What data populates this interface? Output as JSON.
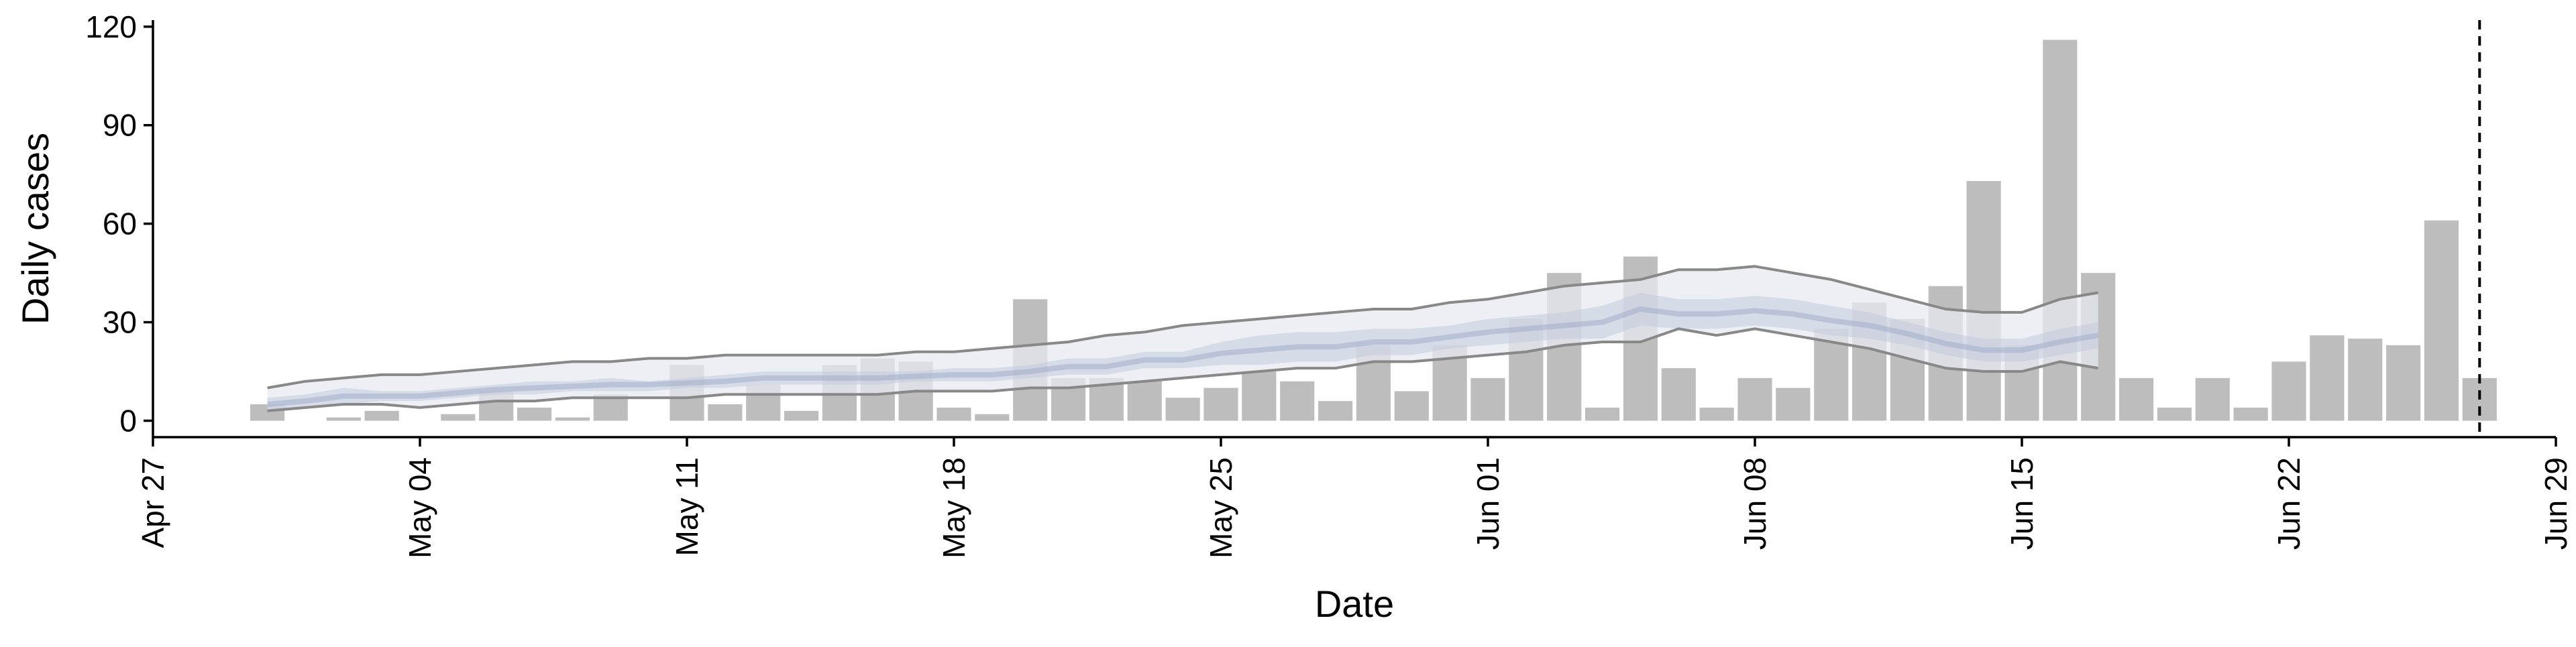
{
  "chart_data": {
    "type": "bar",
    "title": "",
    "xlabel": "Date",
    "ylabel": "Daily cases",
    "xlim": [
      "2020-04-27",
      "2020-06-29"
    ],
    "ylim": [
      -5,
      122
    ],
    "x_ticks": [
      "Apr 27",
      "May 04",
      "May 11",
      "May 18",
      "May 25",
      "Jun 01",
      "Jun 08",
      "Jun 15",
      "Jun 22",
      "Jun 29"
    ],
    "y_ticks": [
      0,
      30,
      60,
      90,
      120
    ],
    "grid": false,
    "colors": {
      "bars": "#bdbdbd",
      "band_outer": "#e8eaf2",
      "band_inner": "#c2cadc",
      "band_lines": "#888888",
      "median_line": "#a5b0cc",
      "vline": "#000000"
    },
    "bars": {
      "x_start": "2020-04-30",
      "values": [
        5,
        0,
        1,
        3,
        0,
        2,
        9,
        4,
        1,
        8,
        0,
        17,
        5,
        11,
        3,
        17,
        19,
        18,
        4,
        2,
        37,
        13,
        13,
        12,
        7,
        10,
        15,
        12,
        6,
        23,
        9,
        23,
        13,
        31,
        45,
        4,
        50,
        16,
        4,
        13,
        10,
        28,
        36,
        31,
        41,
        73,
        23,
        116,
        45,
        13,
        4,
        13,
        4,
        18,
        26,
        25,
        23,
        61,
        13
      ]
    },
    "band": {
      "x_start": "2020-04-30",
      "upper": [
        10,
        12,
        13,
        14,
        14,
        15,
        16,
        17,
        18,
        18,
        19,
        19,
        20,
        20,
        20,
        20,
        20,
        21,
        21,
        22,
        23,
        24,
        26,
        27,
        29,
        30,
        31,
        32,
        33,
        34,
        34,
        36,
        37,
        39,
        41,
        42,
        43,
        46,
        46,
        47,
        45,
        43,
        40,
        37,
        34,
        33,
        33,
        37,
        39
      ],
      "lower": [
        3,
        4,
        5,
        5,
        4,
        5,
        6,
        6,
        7,
        7,
        7,
        7,
        8,
        8,
        8,
        8,
        8,
        9,
        9,
        9,
        10,
        10,
        11,
        12,
        13,
        14,
        15,
        16,
        16,
        18,
        18,
        19,
        20,
        21,
        23,
        24,
        24,
        28,
        26,
        28,
        26,
        24,
        22,
        19,
        16,
        15,
        15,
        18,
        16
      ],
      "inner_upper": [
        7,
        8,
        10,
        9,
        9,
        10,
        11,
        12,
        12,
        13,
        12,
        13,
        14,
        15,
        15,
        15,
        15,
        15,
        16,
        16,
        17,
        19,
        19,
        21,
        21,
        24,
        26,
        27,
        27,
        28,
        28,
        29,
        31,
        32,
        33,
        35,
        39,
        37,
        37,
        38,
        37,
        35,
        33,
        30,
        27,
        25,
        25,
        28,
        30
      ],
      "inner_lower": [
        3,
        4,
        5,
        6,
        6,
        7,
        8,
        8,
        9,
        9,
        9,
        10,
        10,
        11,
        11,
        11,
        11,
        12,
        12,
        12,
        13,
        14,
        14,
        16,
        16,
        17,
        17,
        18,
        18,
        20,
        20,
        22,
        23,
        24,
        25,
        25,
        29,
        28,
        28,
        29,
        28,
        26,
        25,
        23,
        20,
        18,
        18,
        20,
        22
      ],
      "median": [
        5,
        6,
        7.5,
        7.5,
        7.5,
        8.5,
        9.5,
        10,
        10.5,
        11,
        11,
        11.5,
        12,
        13,
        13,
        13,
        13,
        13.5,
        14,
        14,
        15,
        16.5,
        16.5,
        18.5,
        18.5,
        20.5,
        21.5,
        22.5,
        22.5,
        24,
        24,
        25.5,
        27,
        28,
        29,
        30,
        34,
        32.5,
        32.5,
        33.5,
        32.5,
        30.5,
        29,
        26.5,
        23.5,
        21.5,
        21.5,
        24,
        26
      ]
    },
    "vline_date": "2020-06-27"
  }
}
